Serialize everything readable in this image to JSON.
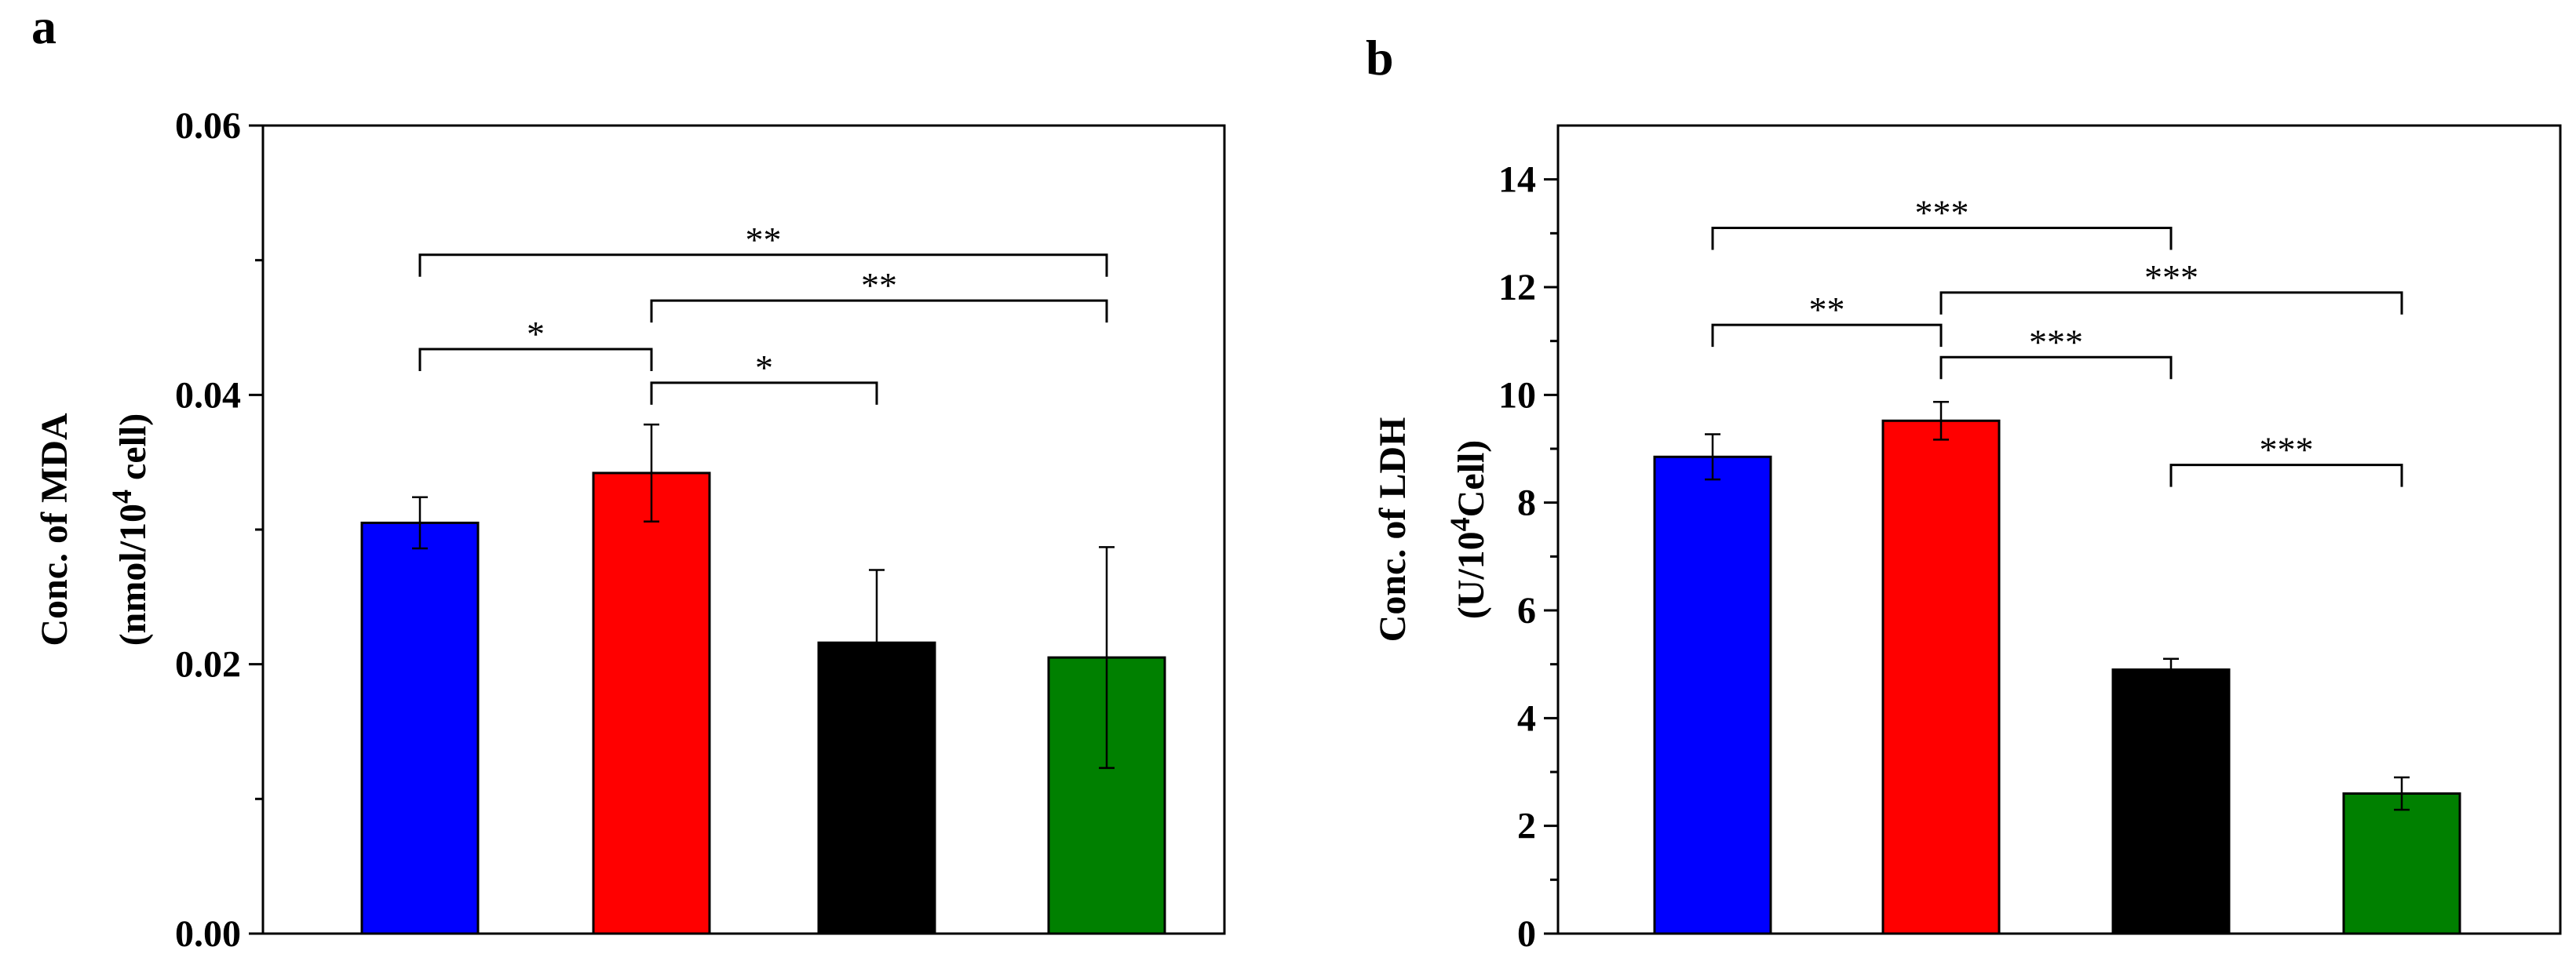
{
  "chart_data": [
    {
      "panel": "a",
      "type": "bar",
      "title": "",
      "xlabel": "",
      "ylabel_line1": "Conc. of  MDA",
      "ylabel_line2_pre": "(nmol/10",
      "ylabel_line2_sup": "4",
      "ylabel_line2_post": " cell)",
      "ylim": [
        0,
        0.06
      ],
      "yticks": [
        0.0,
        0.02,
        0.04,
        0.06
      ],
      "ytick_labels": [
        "0.00",
        "0.02",
        "0.04",
        "0.06"
      ],
      "bars": [
        {
          "value": 0.0305,
          "error": 0.0019,
          "color": "#0000FF"
        },
        {
          "value": 0.0342,
          "error": 0.0036,
          "color": "#FF0000"
        },
        {
          "value": 0.0216,
          "error": 0.0054,
          "color": "#000000"
        },
        {
          "value": 0.0205,
          "error": 0.0082,
          "color": "#008000"
        }
      ],
      "significance": [
        {
          "from": 0,
          "to": 3,
          "label": "**",
          "level": 0.0504
        },
        {
          "from": 1,
          "to": 3,
          "label": "**",
          "level": 0.047
        },
        {
          "from": 0,
          "to": 1,
          "label": "*",
          "level": 0.0434
        },
        {
          "from": 1,
          "to": 2,
          "label": "*",
          "level": 0.0409
        }
      ]
    },
    {
      "panel": "b",
      "type": "bar",
      "title": "",
      "xlabel": "",
      "ylabel_line1": "Conc. of LDH",
      "ylabel_line2_pre": "(U/10",
      "ylabel_line2_sup": "4",
      "ylabel_line2_post": "Cell)",
      "ylim": [
        0,
        15
      ],
      "yticks": [
        0,
        2,
        4,
        6,
        8,
        10,
        12,
        14
      ],
      "ytick_labels": [
        "0",
        "2",
        "4",
        "6",
        "8",
        "10",
        "12",
        "14"
      ],
      "bars": [
        {
          "value": 8.85,
          "error": 0.42,
          "color": "#0000FF"
        },
        {
          "value": 9.52,
          "error": 0.35,
          "color": "#FF0000"
        },
        {
          "value": 4.9,
          "error": 0.2,
          "color": "#000000"
        },
        {
          "value": 2.6,
          "error": 0.3,
          "color": "#008000"
        }
      ],
      "significance": [
        {
          "from": 0,
          "to": 2,
          "label": "***",
          "level": 13.1
        },
        {
          "from": 1,
          "to": 3,
          "label": "***",
          "level": 11.9
        },
        {
          "from": 0,
          "to": 1,
          "label": "**",
          "level": 11.3
        },
        {
          "from": 1,
          "to": 2,
          "label": "***",
          "level": 10.7
        },
        {
          "from": 2,
          "to": 3,
          "label": "***",
          "level": 8.7
        }
      ]
    }
  ]
}
